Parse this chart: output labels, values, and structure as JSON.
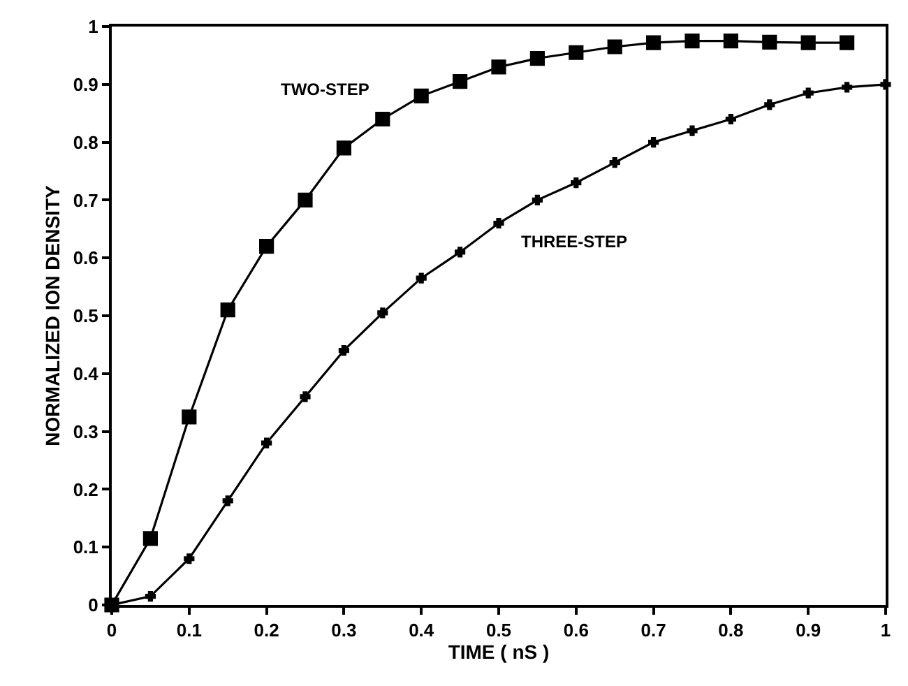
{
  "chart_data": {
    "type": "line",
    "xlabel": "TIME ( nS )",
    "ylabel": "NORMALIZED ION DENSITY",
    "xlim": [
      0,
      1
    ],
    "ylim": [
      0,
      1
    ],
    "xticks": [
      0,
      0.1,
      0.2,
      0.3,
      0.4,
      0.5,
      0.6,
      0.7,
      0.8,
      0.9,
      1
    ],
    "yticks": [
      0,
      0.1,
      0.2,
      0.3,
      0.4,
      0.5,
      0.6,
      0.7,
      0.8,
      0.9,
      1
    ],
    "legend": false,
    "line_style": "solid",
    "series": [
      {
        "name": "TWO-STEP",
        "color": "#000000",
        "marker": "square",
        "x": [
          0,
          0.05,
          0.1,
          0.15,
          0.2,
          0.25,
          0.3,
          0.35,
          0.4,
          0.45,
          0.5,
          0.55,
          0.6,
          0.65,
          0.7,
          0.75,
          0.8,
          0.85,
          0.9,
          0.95
        ],
        "values": [
          0,
          0.115,
          0.325,
          0.51,
          0.62,
          0.7,
          0.79,
          0.84,
          0.88,
          0.905,
          0.93,
          0.945,
          0.955,
          0.965,
          0.972,
          0.975,
          0.975,
          0.973,
          0.972,
          0.972
        ]
      },
      {
        "name": "THREE-STEP",
        "color": "#000000",
        "marker": "cross",
        "x": [
          0,
          0.05,
          0.1,
          0.15,
          0.2,
          0.25,
          0.3,
          0.35,
          0.4,
          0.45,
          0.5,
          0.55,
          0.6,
          0.65,
          0.7,
          0.75,
          0.8,
          0.85,
          0.9,
          0.95,
          1
        ],
        "values": [
          0,
          0.015,
          0.08,
          0.18,
          0.28,
          0.36,
          0.44,
          0.505,
          0.565,
          0.61,
          0.66,
          0.7,
          0.73,
          0.765,
          0.8,
          0.82,
          0.84,
          0.865,
          0.885,
          0.895,
          0.9
        ]
      }
    ]
  }
}
